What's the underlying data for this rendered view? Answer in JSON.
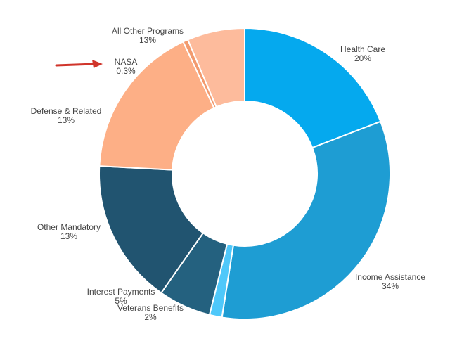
{
  "chart_data": {
    "type": "pie",
    "donut": true,
    "title": "",
    "slices": [
      {
        "label": "Health Care",
        "percent_label": "20%",
        "value": 20,
        "color": "#05A9EE"
      },
      {
        "label": "Income Assistance",
        "percent_label": "34%",
        "value": 34,
        "color": "#1E9DD3"
      },
      {
        "label": "Veterans Benefits",
        "percent_label": "2%",
        "value": 2,
        "color": "#4FC8FA"
      },
      {
        "label": "Interest Payments",
        "percent_label": "5%",
        "value": 5,
        "color": "#24617F"
      },
      {
        "label": "Other Mandatory",
        "percent_label": "13%",
        "value": 13,
        "color": "#215470"
      },
      {
        "label": "Defense & Related",
        "percent_label": "13%",
        "value": 13,
        "color": "#FDAF86"
      },
      {
        "label": "NASA",
        "percent_label": "0.3%",
        "value": 0.3,
        "color": "#F29A6E"
      },
      {
        "label": "All Other Programs",
        "percent_label": "13%",
        "value": 13,
        "color": "#FDBB9C"
      }
    ],
    "annotation": {
      "type": "arrow",
      "points_to": "NASA",
      "color": "#D0352B"
    }
  }
}
